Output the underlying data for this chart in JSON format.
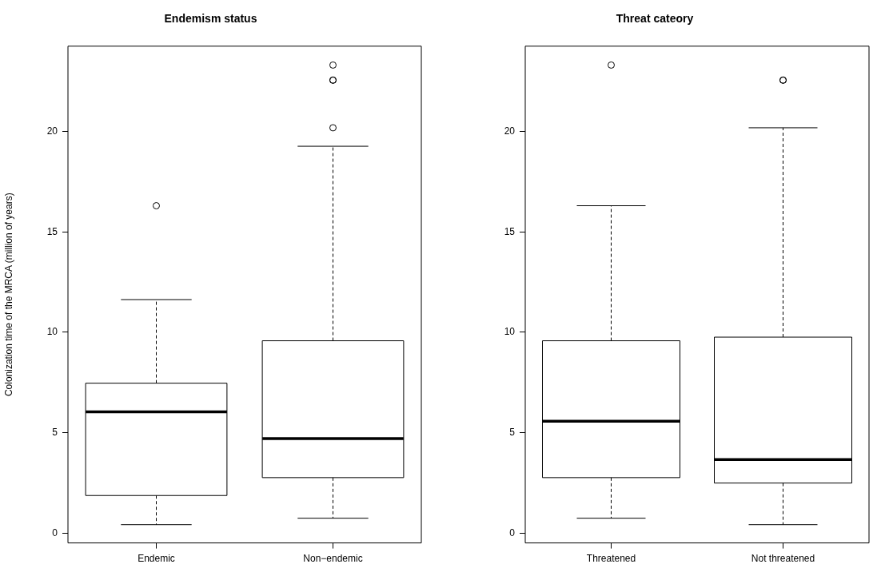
{
  "chart_data": [
    {
      "type": "box",
      "title": "Endemism status",
      "ylabel": "Colonization time of the MRCA (million of years)",
      "categories": [
        "Endemic",
        "Non−endemic"
      ],
      "ylim": [
        -0.48,
        24.24
      ],
      "yticks": [
        0,
        5,
        10,
        15,
        20
      ],
      "grid": false,
      "legend": false,
      "color": "#000000",
      "boxes": [
        {
          "low": 0.43,
          "q1": 1.88,
          "median": 6.04,
          "q3": 7.47,
          "high": 11.63,
          "outliers": [
            16.3
          ]
        },
        {
          "low": 0.75,
          "q1": 2.77,
          "median": 4.71,
          "q3": 9.58,
          "high": 19.26,
          "outliers": [
            20.18,
            22.55,
            22.55,
            23.3
          ]
        }
      ]
    },
    {
      "type": "box",
      "title": "Threat cateory",
      "categories": [
        "Threatened",
        "Not threatened"
      ],
      "ylim": [
        -0.48,
        24.24
      ],
      "yticks": [
        0,
        5,
        10,
        15,
        20
      ],
      "grid": false,
      "legend": false,
      "color": "#000000",
      "boxes": [
        {
          "low": 0.75,
          "q1": 2.77,
          "median": 5.58,
          "q3": 9.58,
          "high": 16.3,
          "outliers": [
            23.3
          ]
        },
        {
          "low": 0.43,
          "q1": 2.5,
          "median": 3.67,
          "q3": 9.76,
          "high": 20.18,
          "outliers": [
            22.55,
            22.55
          ]
        }
      ]
    }
  ]
}
